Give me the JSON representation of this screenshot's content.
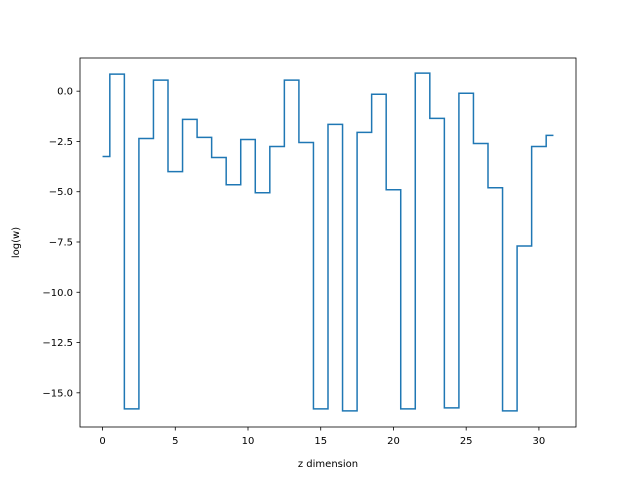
{
  "chart_data": {
    "type": "line",
    "drawstyle": "steps-mid",
    "title": "",
    "xlabel": "z dimension",
    "ylabel": "log(w)",
    "xlim": [
      -1.55,
      32.55
    ],
    "ylim": [
      -16.7,
      1.65
    ],
    "xticks": [
      0,
      5,
      10,
      15,
      20,
      25,
      30
    ],
    "xtick_labels": [
      "0",
      "5",
      "10",
      "15",
      "20",
      "25",
      "30"
    ],
    "yticks": [
      0.0,
      -2.5,
      -5.0,
      -7.5,
      -10.0,
      -12.5,
      -15.0
    ],
    "ytick_labels": [
      "0.0",
      "−2.5",
      "−5.0",
      "−7.5",
      "−10.0",
      "−12.5",
      "−15.0"
    ],
    "grid": false,
    "legend": "none",
    "line_color": "#1f77b4",
    "series": [
      {
        "x": [
          0,
          1,
          2,
          3,
          4,
          5,
          6,
          7,
          8,
          9,
          10,
          11,
          12,
          13,
          14,
          15,
          16,
          17,
          18,
          19,
          20,
          21,
          22,
          23,
          24,
          25,
          26,
          27,
          28,
          29,
          30,
          31
        ],
        "values": [
          -3.25,
          0.85,
          -15.8,
          -2.35,
          0.55,
          -4.0,
          -1.4,
          -2.3,
          -3.3,
          -4.65,
          -2.4,
          -5.05,
          -2.75,
          0.55,
          -2.55,
          -15.8,
          -1.65,
          -15.9,
          -2.05,
          -0.15,
          -4.9,
          -15.8,
          0.9,
          -1.35,
          -15.75,
          -0.1,
          -2.6,
          -4.8,
          -15.9,
          -7.7,
          -2.75,
          -2.2
        ]
      }
    ]
  }
}
